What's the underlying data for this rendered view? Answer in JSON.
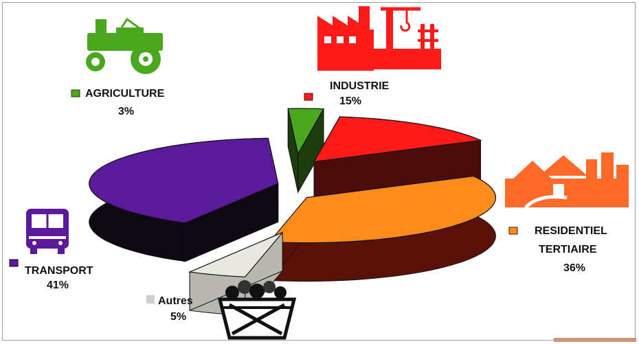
{
  "chart_data": {
    "type": "pie",
    "style": "3d-exploded",
    "title": "",
    "slices": [
      {
        "name": "AGRICULTURE",
        "label_lines": [
          "AGRICULTURE"
        ],
        "value": 3,
        "value_text": "3%",
        "color": "#4aa81e",
        "side_color": "#1d3d0c",
        "icon": "tractor-icon"
      },
      {
        "name": "INDUSTRIE",
        "label_lines": [
          "INDUSTRIE"
        ],
        "value": 15,
        "value_text": "15%",
        "color": "#ff1a1a",
        "side_color": "#4d0c0c",
        "icon": "factory-icon"
      },
      {
        "name": "RESIDENTIEL TERTIAIRE",
        "label_lines": [
          "RESIDENTIEL",
          "TERTIAIRE"
        ],
        "value": 36,
        "value_text": "36%",
        "color": "#ff8c1a",
        "side_color": "#5a1208",
        "icon": "houses-icon"
      },
      {
        "name": "Autres",
        "label_lines": [
          "Autres"
        ],
        "value": 5,
        "value_text": "5%",
        "color": "#e8e8e0",
        "side_color": "#b8b8b0",
        "icon": "coal-cart-icon"
      },
      {
        "name": "TRANSPORT",
        "label_lines": [
          "TRANSPORT"
        ],
        "value": 41,
        "value_text": "41%",
        "color": "#5b1a9c",
        "side_color": "#0d0812",
        "icon": "bus-icon"
      }
    ],
    "legend": "labels-around-pie"
  }
}
